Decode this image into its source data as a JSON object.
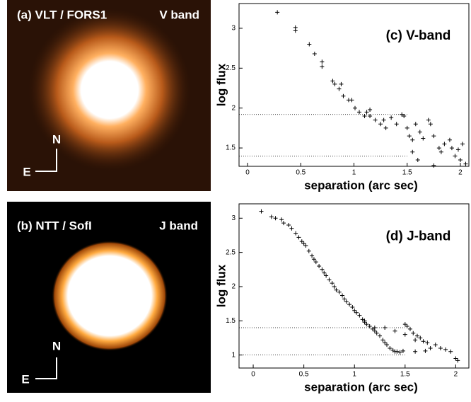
{
  "panels": [
    {
      "title": "(a) VLT / FORS1",
      "band": "V band",
      "north": "N",
      "east": "E"
    },
    {
      "title": "(b) NTT / SofI",
      "band": "J band",
      "north": "N",
      "east": "E"
    }
  ],
  "chart_data": [
    {
      "type": "scatter",
      "title": "(c) V-band",
      "xlabel": "separation (arc sec)",
      "ylabel": "log flux",
      "xlim": [
        -0.08,
        2.08
      ],
      "ylim": [
        1.27,
        3.31
      ],
      "xticks": [
        0,
        0.5,
        1,
        1.5,
        2
      ],
      "yticks": [
        1.5,
        2,
        2.5,
        3
      ],
      "reference_lines": [
        {
          "y": 1.92,
          "x_end": 1.5
        },
        {
          "y": 1.4,
          "x_end": 1.5
        }
      ],
      "series": [
        {
          "color": "#000",
          "x": [
            0.28,
            0.45,
            0.45,
            0.58,
            0.63,
            0.7,
            0.7,
            0.8,
            0.82,
            0.88,
            0.86,
            0.9,
            0.95,
            0.98,
            1.05,
            1.1,
            1.12,
            1.15,
            1.2,
            1.25,
            1.28,
            1.3,
            1.35,
            1.4,
            1.45,
            1.47,
            1.5,
            1.55,
            1.52,
            1.58,
            1.62,
            1.65,
            1.7,
            1.72,
            1.75,
            1.8,
            1.82,
            1.85,
            1.9,
            1.92,
            1.95,
            1.98,
            2.0,
            2.02,
            2.05,
            1.6,
            1.75,
            1.55,
            1.15,
            1.01
          ],
          "values": [
            3.2,
            3.01,
            2.97,
            2.8,
            2.68,
            2.58,
            2.52,
            2.34,
            2.3,
            2.3,
            2.24,
            2.15,
            2.1,
            2.1,
            1.95,
            1.9,
            1.95,
            1.9,
            1.85,
            1.8,
            1.85,
            1.75,
            1.88,
            1.8,
            1.92,
            1.9,
            1.75,
            1.6,
            1.65,
            1.8,
            1.7,
            1.62,
            1.85,
            1.8,
            1.65,
            1.5,
            1.45,
            1.55,
            1.6,
            1.5,
            1.4,
            1.48,
            1.35,
            1.55,
            1.3,
            1.35,
            1.28,
            1.45,
            1.98,
            2.0
          ]
        }
      ]
    },
    {
      "type": "scatter",
      "title": "(d) J-band",
      "xlabel": "separation (arc sec)",
      "ylabel": "log flux",
      "xlim": [
        -0.14,
        2.13
      ],
      "ylim": [
        0.81,
        3.21
      ],
      "xticks": [
        0,
        0.5,
        1,
        1.5,
        2
      ],
      "yticks": [
        1,
        1.5,
        2,
        2.5,
        3
      ],
      "reference_lines": [
        {
          "y": 1.4,
          "x_end": 1.5
        },
        {
          "y": 1.0,
          "x_end": 1.5
        }
      ],
      "series": [
        {
          "color": "#000",
          "x": [
            0.08,
            0.18,
            0.22,
            0.28,
            0.3,
            0.35,
            0.38,
            0.42,
            0.45,
            0.48,
            0.5,
            0.52,
            0.55,
            0.58,
            0.6,
            0.62,
            0.65,
            0.68,
            0.7,
            0.72,
            0.75,
            0.78,
            0.8,
            0.82,
            0.85,
            0.88,
            0.9,
            0.92,
            0.95,
            0.98,
            1.0,
            1.02,
            1.05,
            1.08,
            1.1,
            1.12,
            1.15,
            1.18,
            1.2,
            1.22,
            1.25,
            1.28,
            1.3,
            1.32,
            1.35,
            1.38,
            1.4,
            1.42,
            1.45,
            1.48,
            1.5,
            1.52,
            1.55,
            1.58,
            1.6,
            1.62,
            1.65,
            1.68,
            1.7,
            1.72,
            1.75,
            1.8,
            1.85,
            1.9,
            1.95,
            2.0,
            2.02,
            1.3,
            1.4,
            1.5,
            1.6,
            1.2,
            1.1
          ],
          "values": [
            3.1,
            3.02,
            3.0,
            2.98,
            2.93,
            2.9,
            2.85,
            2.78,
            2.72,
            2.66,
            2.63,
            2.6,
            2.52,
            2.45,
            2.4,
            2.36,
            2.3,
            2.25,
            2.2,
            2.16,
            2.1,
            2.05,
            2.0,
            1.95,
            1.92,
            1.87,
            1.82,
            1.78,
            1.74,
            1.7,
            1.65,
            1.62,
            1.58,
            1.52,
            1.48,
            1.45,
            1.42,
            1.38,
            1.35,
            1.32,
            1.28,
            1.22,
            1.18,
            1.15,
            1.1,
            1.07,
            1.05,
            1.05,
            1.04,
            1.06,
            1.45,
            1.42,
            1.38,
            1.32,
            1.05,
            1.28,
            1.25,
            1.2,
            1.06,
            1.18,
            1.1,
            1.15,
            1.1,
            1.08,
            1.05,
            0.95,
            0.92,
            1.4,
            1.35,
            1.3,
            1.22,
            1.4,
            1.5
          ]
        }
      ]
    }
  ]
}
